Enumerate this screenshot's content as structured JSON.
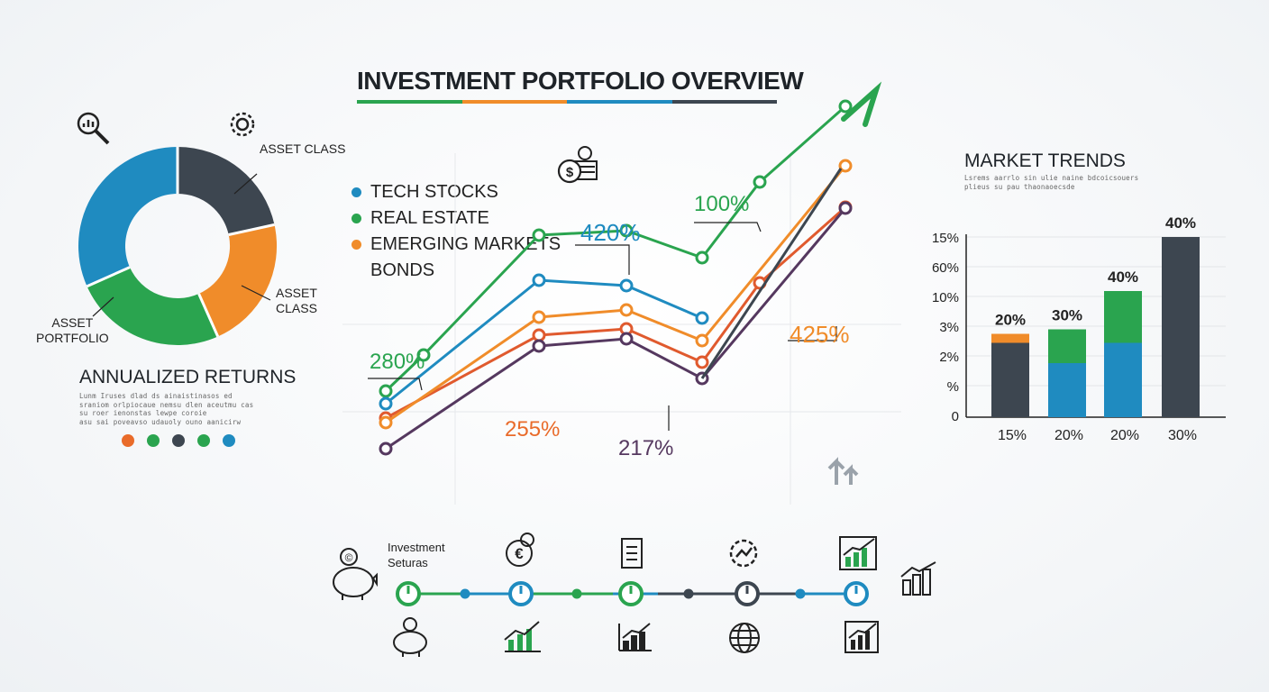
{
  "title": "INVESTMENT PORTFOLIO OVERVIEW",
  "colors": {
    "blue": "#1f8bc0",
    "green": "#2aa44f",
    "orange": "#f08c2a",
    "dark": "#3d4650",
    "purple": "#55385f",
    "red": "#e05a2e"
  },
  "donut": {
    "labels": {
      "top_right": "ASSET\nCLASS",
      "mid_right": "ASSET\nCLASS",
      "bottom_left": "ASSET\nPORTFOLIO"
    },
    "header_icons": [
      "search-chart-icon",
      "gear-icon"
    ]
  },
  "annualized": {
    "heading": "ANNUALIZED RETURNS",
    "body": "Lunm Iruses dlad ds ainaistinasos ed\nsraniom orlpiocaue nemsu dlen aceutmu cas\nsu roer ienonstas lewpe coroie\nasu sai poveavso udauoly ouno aanicirw"
  },
  "line_legend": [
    "TECH STOCKS",
    "REAL ESTATE",
    "EMERGING MARKETS",
    "BONDS"
  ],
  "line_annotations": {
    "a280": "280%",
    "a420": "420%",
    "a100": "100%",
    "a425": "425%",
    "a255": "255%",
    "a217": "217%"
  },
  "market": {
    "heading": "MARKET TRENDS",
    "body": "Lsrems aarrlo sin ulie naine bdcoicsouers\nplieus su pau thaonaoecsde"
  },
  "chart_data": [
    {
      "type": "line",
      "x": [
        1,
        2,
        3,
        4,
        5,
        6,
        7
      ],
      "series": [
        {
          "name": "REAL ESTATE",
          "values": [
            96,
            136,
            269,
            274,
            244,
            328,
            412
          ]
        },
        {
          "name": "TECH STOCKS",
          "values": [
            82,
            null,
            219,
            213,
            177,
            null,
            null
          ]
        },
        {
          "name": "EMERGING MARKETS",
          "values": [
            66,
            null,
            158,
            165,
            128,
            216,
            300
          ]
        },
        {
          "name": "BONDS",
          "values": [
            61,
            null,
            178,
            186,
            152,
            null,
            346
          ]
        }
      ],
      "annotations": [
        "280%",
        "420%",
        "100%",
        "425%",
        "255%",
        "217%"
      ]
    },
    {
      "type": "bar",
      "title": "MARKET TRENDS",
      "categories": [
        "15%",
        "20%",
        "20%",
        "30%"
      ],
      "yticks": [
        "15%",
        "60%",
        "10%",
        "3%",
        "2%",
        "%",
        "0"
      ],
      "bar_top_labels": [
        "20%",
        "30%",
        "40%",
        "40%"
      ],
      "series": [
        {
          "color": "dark",
          "values": [
            3.3,
            0,
            0,
            8
          ]
        },
        {
          "color": "blue",
          "values": [
            0,
            2.4,
            3.3,
            0
          ]
        },
        {
          "color": "orange",
          "values": [
            0.4,
            0,
            0,
            0
          ]
        },
        {
          "color": "green",
          "values": [
            0,
            1.5,
            2.3,
            0
          ]
        }
      ],
      "ylim": [
        0,
        8
      ]
    }
  ],
  "timeline": {
    "label": "Investment\nSeturas",
    "top_icons": [
      "piggy-bank-icon",
      "euro-coin-icon",
      "document-icon",
      "gear-chart-icon",
      "growth-chart-icon"
    ],
    "bottom_icons": [
      "piggy-bank-icon",
      "growth-chart-icon",
      "bar-chart-icon",
      "globe-icon",
      "growth-chart-icon"
    ]
  }
}
